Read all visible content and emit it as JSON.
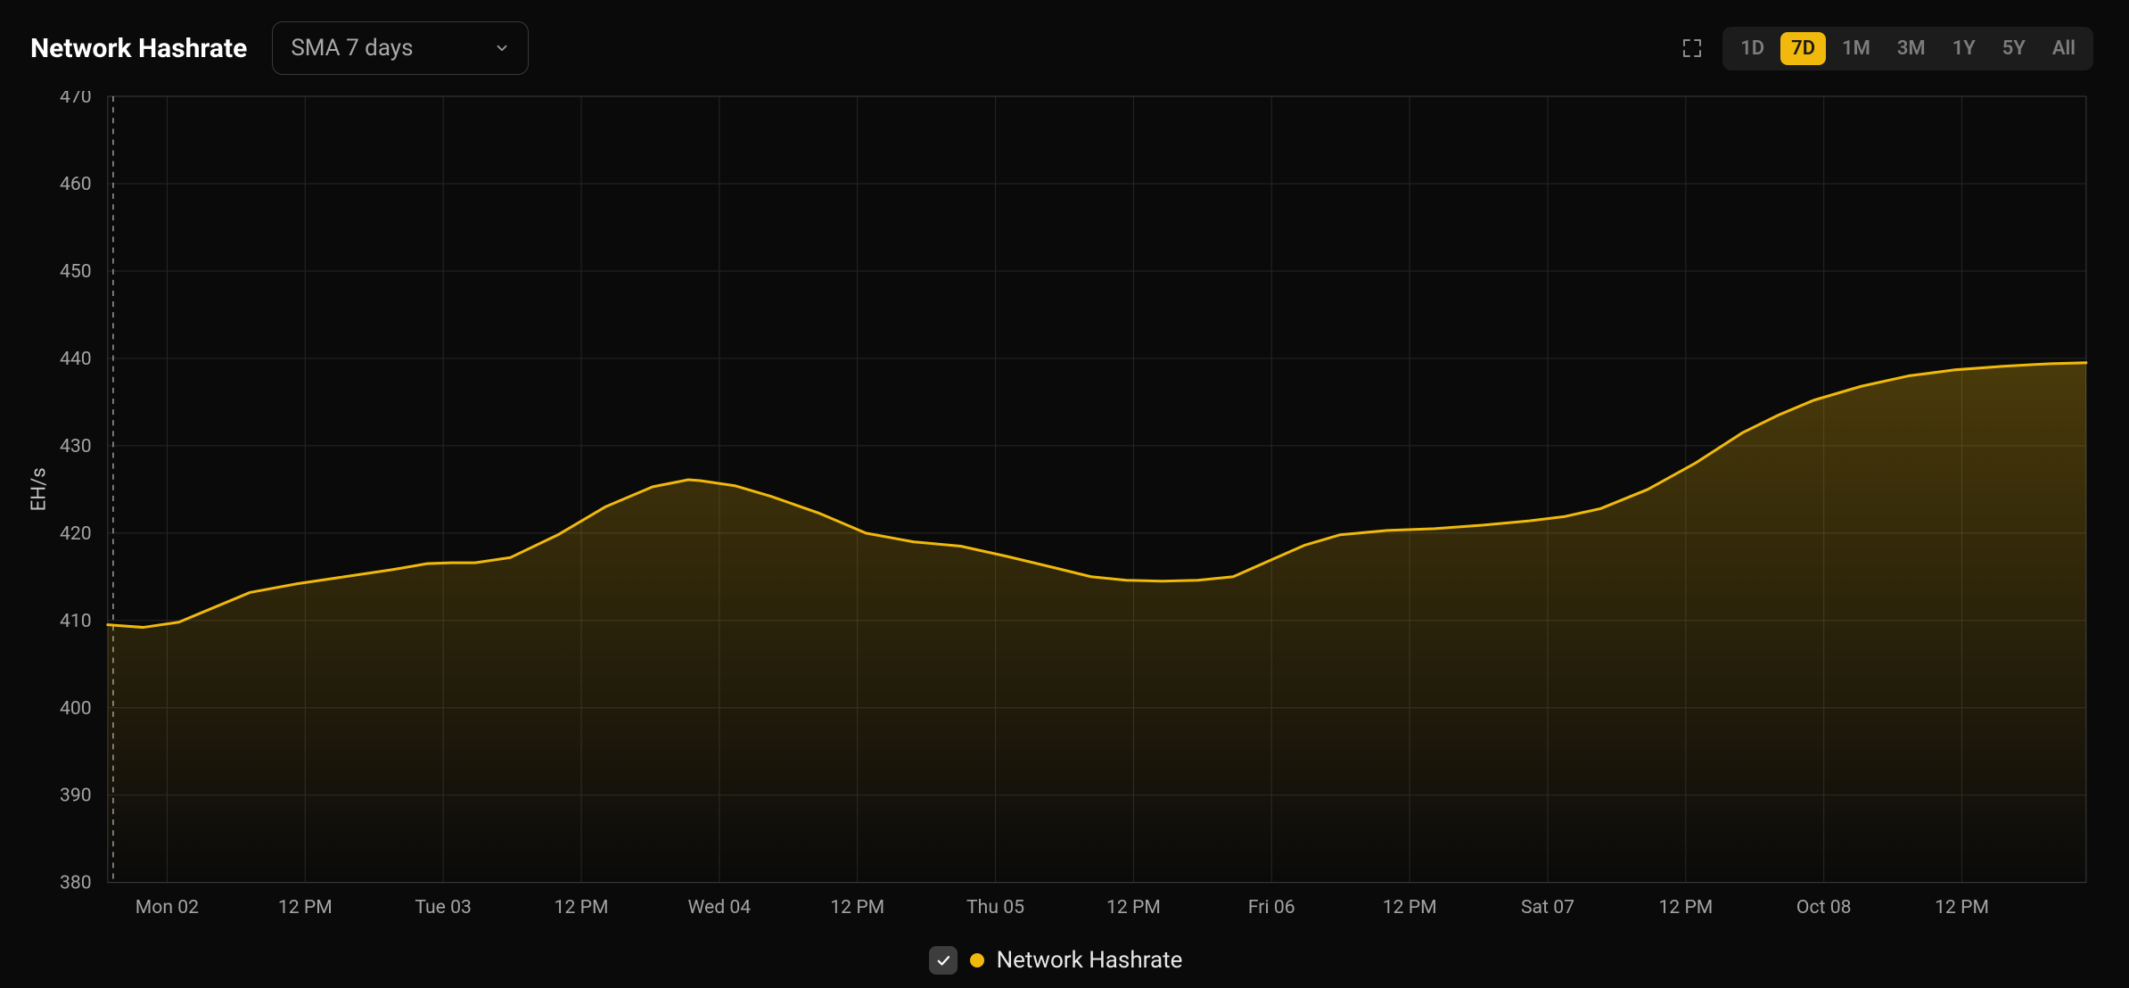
{
  "header": {
    "title": "Network Hashrate",
    "select_label": "SMA 7 days"
  },
  "ranges": {
    "items": [
      "1D",
      "7D",
      "1M",
      "3M",
      "1Y",
      "5Y",
      "All"
    ],
    "active_index": 1
  },
  "legend": {
    "label": "Network Hashrate",
    "dot_color": "#f0b90b",
    "checked": true
  },
  "chart": {
    "type": "area",
    "background_color": "#0a0a0a",
    "grid_color": "#262626",
    "border_color": "#3a3a3a",
    "line_color": "#f0b90b",
    "line_width": 3,
    "fill_top_color": "rgba(240,185,11,0.28)",
    "fill_bottom_color": "rgba(240,185,11,0.0)",
    "ylabel": "EH/s",
    "y_axis": {
      "min": 380,
      "max": 470,
      "ticks": [
        380,
        390,
        400,
        410,
        420,
        430,
        440,
        450,
        460,
        470
      ],
      "tick_fontsize": 21
    },
    "x_axis": {
      "labels": [
        "Mon 02",
        "12 PM",
        "Tue 03",
        "12 PM",
        "Wed 04",
        "12 PM",
        "Thu 05",
        "12 PM",
        "Fri 06",
        "12 PM",
        "Sat 07",
        "12 PM",
        "Oct 08",
        "12 PM"
      ],
      "tick_fontsize": 21
    },
    "dashed_marker_color": "#9a9a9a",
    "series": [
      {
        "name": "Network Hashrate",
        "color": "#f0b90b",
        "points": [
          [
            0.0,
            409.5
          ],
          [
            0.03,
            409.2
          ],
          [
            0.06,
            409.8
          ],
          [
            0.09,
            411.5
          ],
          [
            0.12,
            413.2
          ],
          [
            0.16,
            414.2
          ],
          [
            0.2,
            415.0
          ],
          [
            0.24,
            415.8
          ],
          [
            0.27,
            416.5
          ],
          [
            0.29,
            416.6
          ],
          [
            0.31,
            416.6
          ],
          [
            0.34,
            417.2
          ],
          [
            0.38,
            419.8
          ],
          [
            0.42,
            423.0
          ],
          [
            0.46,
            425.3
          ],
          [
            0.49,
            426.1
          ],
          [
            0.5,
            426.0
          ],
          [
            0.53,
            425.4
          ],
          [
            0.56,
            424.2
          ],
          [
            0.6,
            422.3
          ],
          [
            0.64,
            420.0
          ],
          [
            0.68,
            419.0
          ],
          [
            0.72,
            418.5
          ],
          [
            0.76,
            417.3
          ],
          [
            0.8,
            416.0
          ],
          [
            0.83,
            415.0
          ],
          [
            0.86,
            414.6
          ],
          [
            0.89,
            414.5
          ],
          [
            0.92,
            414.6
          ],
          [
            0.95,
            415.0
          ],
          [
            0.98,
            416.8
          ],
          [
            1.01,
            418.6
          ],
          [
            1.04,
            419.8
          ],
          [
            1.08,
            420.3
          ],
          [
            1.12,
            420.5
          ],
          [
            1.16,
            420.9
          ],
          [
            1.2,
            421.4
          ],
          [
            1.23,
            421.9
          ],
          [
            1.26,
            422.8
          ],
          [
            1.3,
            425.0
          ],
          [
            1.34,
            428.0
          ],
          [
            1.38,
            431.5
          ],
          [
            1.41,
            433.5
          ],
          [
            1.44,
            435.2
          ],
          [
            1.48,
            436.8
          ],
          [
            1.52,
            438.0
          ],
          [
            1.56,
            438.7
          ],
          [
            1.6,
            439.1
          ],
          [
            1.64,
            439.4
          ],
          [
            1.67,
            439.5
          ]
        ]
      }
    ]
  }
}
